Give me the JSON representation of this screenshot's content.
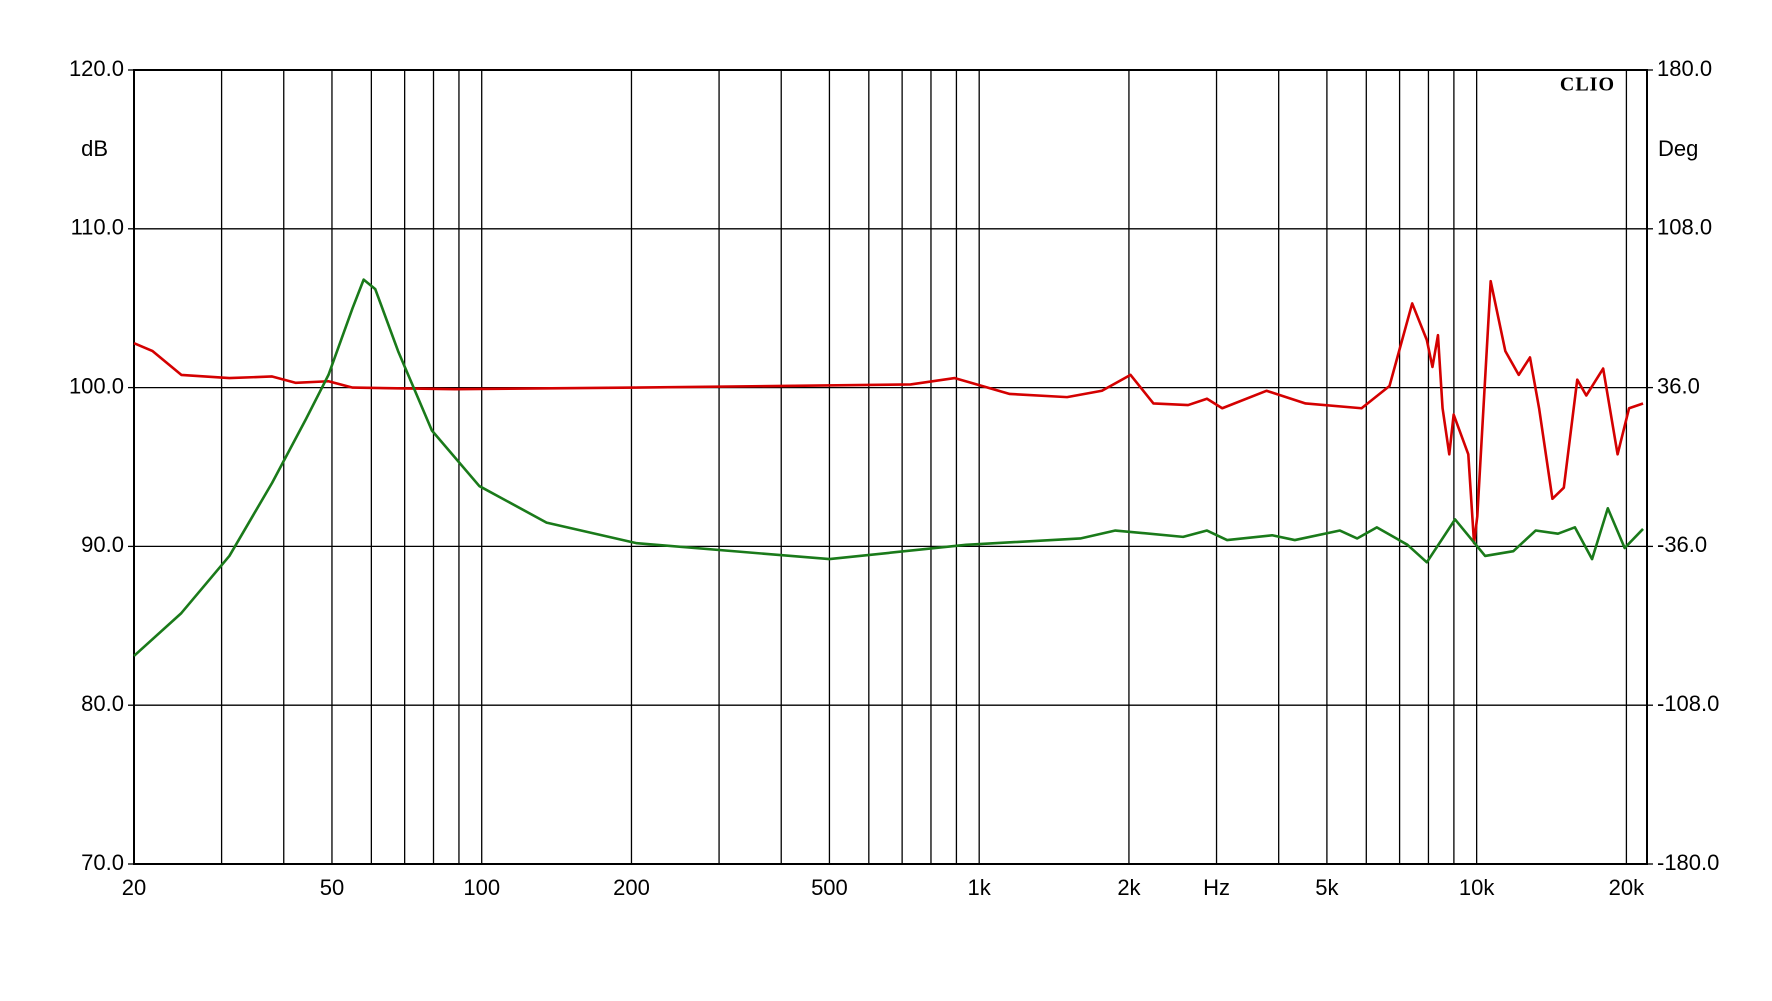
{
  "chart_data": {
    "type": "line",
    "brand": "CLIO",
    "y_label": "dB",
    "y2_label": "Deg",
    "log_x": true,
    "grid": true,
    "xlim": [
      20,
      22000
    ],
    "ylim": [
      70,
      120
    ],
    "y2lim": [
      -180,
      180
    ],
    "xticks": [
      20,
      {
        "value": 30,
        "label": null
      },
      {
        "value": 40,
        "label": null
      },
      50,
      {
        "value": 60,
        "label": null
      },
      {
        "value": 70,
        "label": null
      },
      {
        "value": 80,
        "label": null
      },
      {
        "value": 90,
        "label": null
      },
      100,
      200,
      {
        "value": 300,
        "label": null
      },
      {
        "value": 400,
        "label": null
      },
      500,
      {
        "value": 600,
        "label": null
      },
      {
        "value": 700,
        "label": null
      },
      {
        "value": 800,
        "label": null
      },
      {
        "value": 900,
        "label": null
      },
      {
        "value": 1000,
        "label": "1k"
      },
      {
        "value": 2000,
        "label": "2k"
      },
      {
        "value": 3000,
        "label": "Hz"
      },
      {
        "value": 4000,
        "label": null
      },
      {
        "value": 5000,
        "label": "5k"
      },
      {
        "value": 6000,
        "label": null
      },
      {
        "value": 7000,
        "label": null
      },
      {
        "value": 8000,
        "label": null
      },
      {
        "value": 9000,
        "label": null
      },
      {
        "value": 10000,
        "label": "10k"
      },
      {
        "value": 20000,
        "label": "20k"
      }
    ],
    "yticks": [
      {
        "value": 70,
        "label": "70.0"
      },
      {
        "value": 80,
        "label": "80.0"
      },
      {
        "value": 90,
        "label": "90.0"
      },
      {
        "value": 100,
        "label": "100.0"
      },
      {
        "value": 110,
        "label": "110.0"
      },
      {
        "value": 120,
        "label": "120.0"
      }
    ],
    "y2ticks": [
      {
        "value": -180,
        "label": "-180.0"
      },
      {
        "value": -108,
        "label": "-108.0"
      },
      {
        "value": -36,
        "label": "-36.0"
      },
      {
        "value": 36,
        "label": "36.0"
      },
      {
        "value": 108,
        "label": "108.0"
      },
      {
        "value": 180,
        "label": "180.0"
      }
    ],
    "series": [
      {
        "color": "#d40000",
        "x": [
          20,
          21.8,
          24.9,
          31.1,
          37.9,
          42.3,
          49.2,
          55,
          88.3,
          205,
          728,
          893,
          1152,
          1502,
          1765,
          2015,
          2240,
          2630,
          2870,
          3080,
          3780,
          4530,
          5870,
          6680,
          7420,
          7940,
          8150,
          8360,
          8540,
          8810,
          8990,
          9620,
          9880,
          10030,
          10670,
          11420,
          12150,
          12800,
          13350,
          14200,
          14970,
          15930,
          16610,
          17960,
          19200,
          20250,
          21600
        ],
        "values": [
          102.8,
          102.3,
          100.8,
          100.6,
          100.7,
          100.3,
          100.4,
          100.0,
          99.9,
          100.0,
          100.2,
          100.6,
          99.6,
          99.4,
          99.8,
          100.8,
          99.0,
          98.9,
          99.3,
          98.7,
          99.8,
          99.0,
          98.7,
          100.1,
          105.3,
          103.0,
          101.3,
          103.3,
          98.7,
          95.8,
          98.3,
          95.8,
          90.2,
          91.9,
          106.7,
          102.3,
          100.8,
          101.9,
          98.7,
          93.0,
          93.7,
          100.5,
          99.5,
          101.2,
          95.8,
          98.7,
          99.0
        ]
      },
      {
        "color": "#1a7a1a",
        "x": [
          20,
          24.9,
          31.1,
          37.9,
          44.3,
          49.2,
          55,
          57.9,
          61.1,
          67.9,
          79.4,
          98.9,
          135,
          205,
          500,
          941,
          1597,
          1878,
          2570,
          2870,
          3150,
          3880,
          4310,
          5310,
          5750,
          6300,
          7260,
          7940,
          9050,
          10400,
          11850,
          13140,
          14570,
          15760,
          17060,
          18350,
          19840,
          21600
        ],
        "values": [
          83.1,
          85.8,
          89.4,
          94.0,
          98.0,
          100.8,
          105.0,
          106.8,
          106.2,
          102.3,
          97.3,
          93.8,
          91.5,
          90.2,
          89.2,
          90.1,
          90.5,
          91.0,
          90.6,
          91.0,
          90.4,
          90.7,
          90.4,
          91.0,
          90.5,
          91.2,
          90.1,
          89.0,
          91.7,
          89.4,
          89.7,
          91.0,
          90.8,
          91.2,
          89.2,
          92.4,
          89.9,
          91.1
        ]
      }
    ]
  }
}
